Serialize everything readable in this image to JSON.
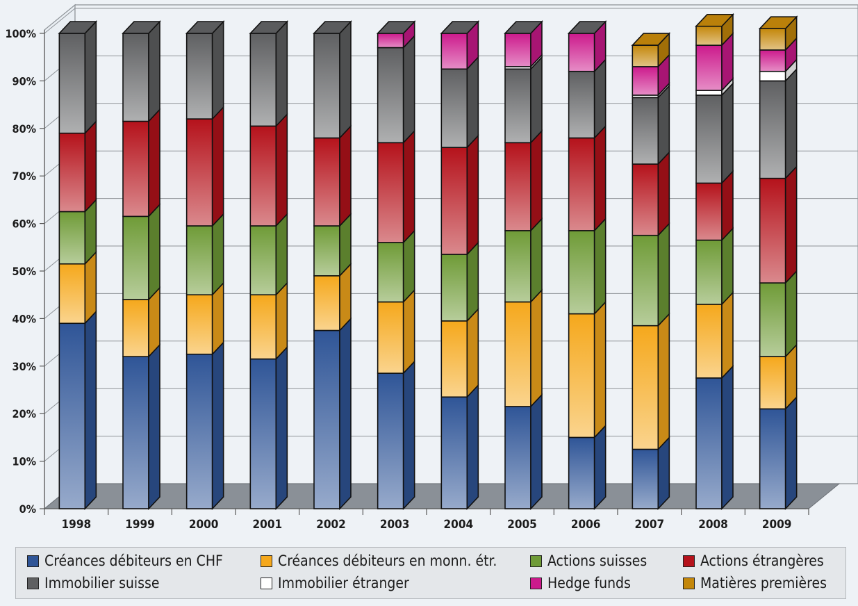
{
  "chart_data": {
    "type": "bar",
    "stacked": true,
    "categories": [
      "1998",
      "1999",
      "2000",
      "2001",
      "2002",
      "2003",
      "2004",
      "2005",
      "2006",
      "2007",
      "2008",
      "2009"
    ],
    "ylim": [
      0,
      100
    ],
    "yticks": [
      "0%",
      "10%",
      "20%",
      "30%",
      "40%",
      "50%",
      "60%",
      "70%",
      "80%",
      "90%",
      "100%"
    ],
    "grid": true,
    "legend_position": "bottom",
    "series": [
      {
        "name": "Créances débiteurs en CHF",
        "color": "#2f5597",
        "values": [
          39,
          32,
          32.5,
          31.5,
          37.5,
          28.5,
          23.5,
          21.5,
          15,
          12.5,
          27.5,
          21
        ]
      },
      {
        "name": "Créances débiteurs en monn. étr.",
        "color": "#f5a81c",
        "values": [
          12.5,
          12,
          12.5,
          13.5,
          11.5,
          15,
          16,
          22,
          26,
          26,
          15.5,
          11
        ]
      },
      {
        "name": "Actions suisses",
        "color": "#6f9b37",
        "values": [
          11,
          17.5,
          14.5,
          14.5,
          10.5,
          12.5,
          14,
          15,
          17.5,
          19,
          13.5,
          15.5
        ]
      },
      {
        "name": "Actions étrangères",
        "color": "#b5121b",
        "values": [
          16.5,
          20,
          22.5,
          21,
          18.5,
          21,
          22.5,
          18.5,
          19.5,
          15,
          12,
          22
        ]
      },
      {
        "name": "Immobilier suisse",
        "color": "#5f6062",
        "values": [
          21,
          18.5,
          18,
          19.5,
          22,
          20,
          16.5,
          15.5,
          14,
          14,
          18.5,
          20.5
        ]
      },
      {
        "name": "Immobilier étranger",
        "color": "#ffffff",
        "values": [
          0,
          0,
          0,
          0,
          0,
          0,
          0,
          0.5,
          0,
          0.5,
          1,
          2
        ]
      },
      {
        "name": "Hedge funds",
        "color": "#cc1a8c",
        "values": [
          0,
          0,
          0,
          0,
          0,
          3,
          7.5,
          7,
          8,
          6,
          9.5,
          4.5
        ]
      },
      {
        "name": "Matières premières",
        "color": "#c4870a",
        "values": [
          0,
          0,
          0,
          0,
          0,
          0,
          0,
          0,
          0,
          4.5,
          4,
          4.5
        ]
      }
    ]
  }
}
